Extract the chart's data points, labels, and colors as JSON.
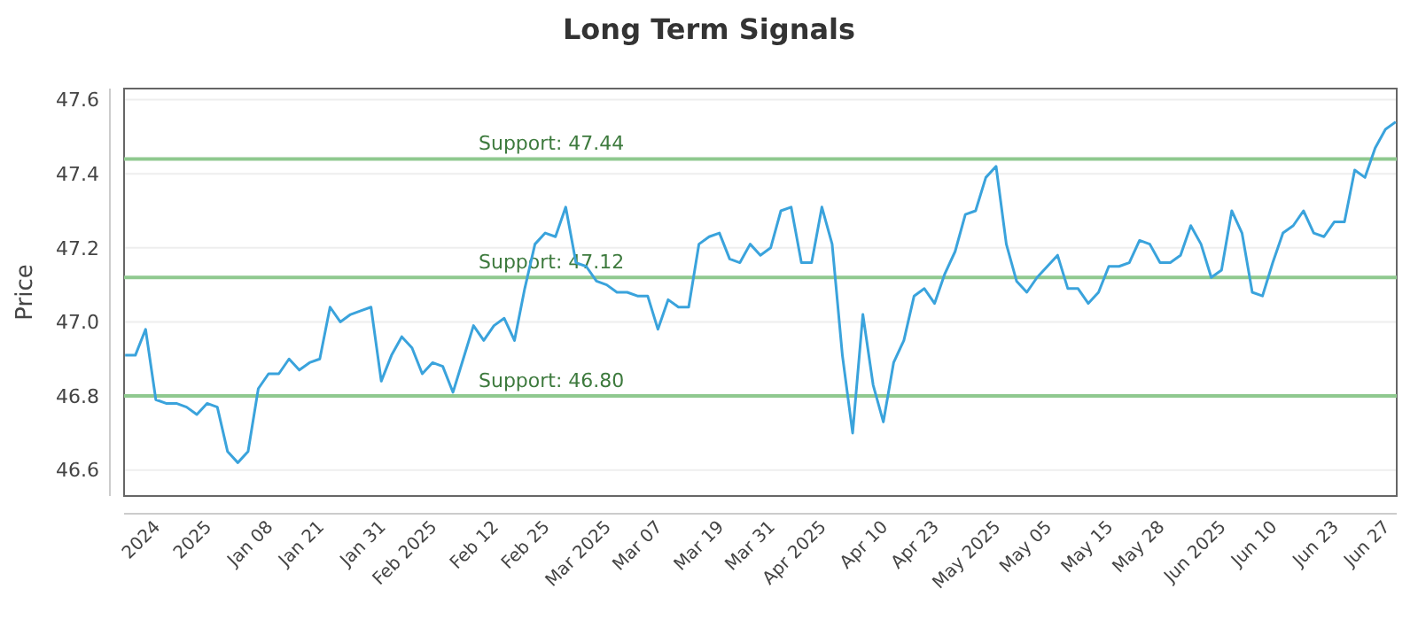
{
  "chart_data": {
    "type": "line",
    "title": "Long Term Signals",
    "ylabel": "Price",
    "categories": [
      null,
      null,
      null,
      "2024",
      null,
      null,
      null,
      null,
      "2025",
      null,
      null,
      null,
      null,
      null,
      "Jan 08",
      null,
      null,
      null,
      null,
      "Jan 21",
      null,
      null,
      null,
      null,
      null,
      "Jan 31",
      null,
      null,
      null,
      null,
      "Feb 2025",
      null,
      null,
      null,
      null,
      null,
      "Feb 12",
      null,
      null,
      null,
      null,
      "Feb 25",
      null,
      null,
      null,
      null,
      null,
      "Mar 2025",
      null,
      null,
      null,
      null,
      "Mar 07",
      null,
      null,
      null,
      null,
      null,
      "Mar 19",
      null,
      null,
      null,
      null,
      "Mar 31",
      null,
      null,
      null,
      null,
      "Apr 2025",
      null,
      null,
      null,
      null,
      null,
      "Apr 10",
      null,
      null,
      null,
      null,
      "Apr 23",
      null,
      null,
      null,
      null,
      null,
      "May 2025",
      null,
      null,
      null,
      null,
      "May 05",
      null,
      null,
      null,
      null,
      null,
      "May 15",
      null,
      null,
      null,
      null,
      "May 28",
      null,
      null,
      null,
      null,
      null,
      "Jun 2025",
      null,
      null,
      null,
      null,
      "Jun 10",
      null,
      null,
      null,
      null,
      null,
      "Jun 23",
      null,
      null,
      null,
      null,
      "Jun 27",
      null
    ],
    "series": [
      {
        "color": "#3aa3dc",
        "values": [
          46.91,
          46.91,
          46.98,
          46.79,
          46.78,
          46.78,
          46.77,
          46.75,
          46.78,
          46.77,
          46.65,
          46.62,
          46.65,
          46.82,
          46.86,
          46.86,
          46.9,
          46.87,
          46.89,
          46.9,
          47.04,
          47.0,
          47.02,
          47.03,
          47.04,
          46.84,
          46.91,
          46.96,
          46.93,
          46.86,
          46.89,
          46.88,
          46.81,
          46.9,
          46.99,
          46.95,
          46.99,
          47.01,
          46.95,
          47.09,
          47.21,
          47.24,
          47.23,
          47.31,
          47.16,
          47.15,
          47.11,
          47.1,
          47.08,
          47.08,
          47.07,
          47.07,
          46.98,
          47.06,
          47.04,
          47.04,
          47.21,
          47.23,
          47.24,
          47.17,
          47.16,
          47.21,
          47.18,
          47.2,
          47.3,
          47.31,
          47.16,
          47.16,
          47.31,
          47.21,
          46.91,
          46.7,
          47.02,
          46.83,
          46.73,
          46.89,
          46.95,
          47.07,
          47.09,
          47.05,
          47.13,
          47.19,
          47.29,
          47.3,
          47.39,
          47.42,
          47.21,
          47.11,
          47.08,
          47.12,
          47.15,
          47.18,
          47.09,
          47.09,
          47.05,
          47.08,
          47.15,
          47.15,
          47.16,
          47.22,
          47.21,
          47.16,
          47.16,
          47.18,
          47.26,
          47.21,
          47.12,
          47.14,
          47.3,
          47.24,
          47.08,
          47.07,
          47.16,
          47.24,
          47.26,
          47.3,
          47.24,
          47.23,
          47.27,
          47.27,
          47.41,
          47.39,
          47.47,
          47.52,
          47.54
        ]
      }
    ],
    "ylim": [
      46.53,
      47.63
    ],
    "yticks": [
      {
        "value": 46.6,
        "label": "46.6"
      },
      {
        "value": 46.8,
        "label": "46.8"
      },
      {
        "value": 47.0,
        "label": "47.0"
      },
      {
        "value": 47.2,
        "label": "47.2"
      },
      {
        "value": 47.4,
        "label": "47.4"
      },
      {
        "value": 47.6,
        "label": "47.6"
      }
    ],
    "grid": "y",
    "marker": "none",
    "line_style": "solid",
    "ref_lines": [
      {
        "axis": "y",
        "value": 47.44,
        "label": "Support: 47.44",
        "color": "#8fc98f"
      },
      {
        "axis": "y",
        "value": 47.12,
        "label": "Support: 47.12",
        "color": "#8fc98f"
      },
      {
        "axis": "y",
        "value": 46.8,
        "label": "Support: 46.80",
        "color": "#8fc98f"
      }
    ]
  }
}
